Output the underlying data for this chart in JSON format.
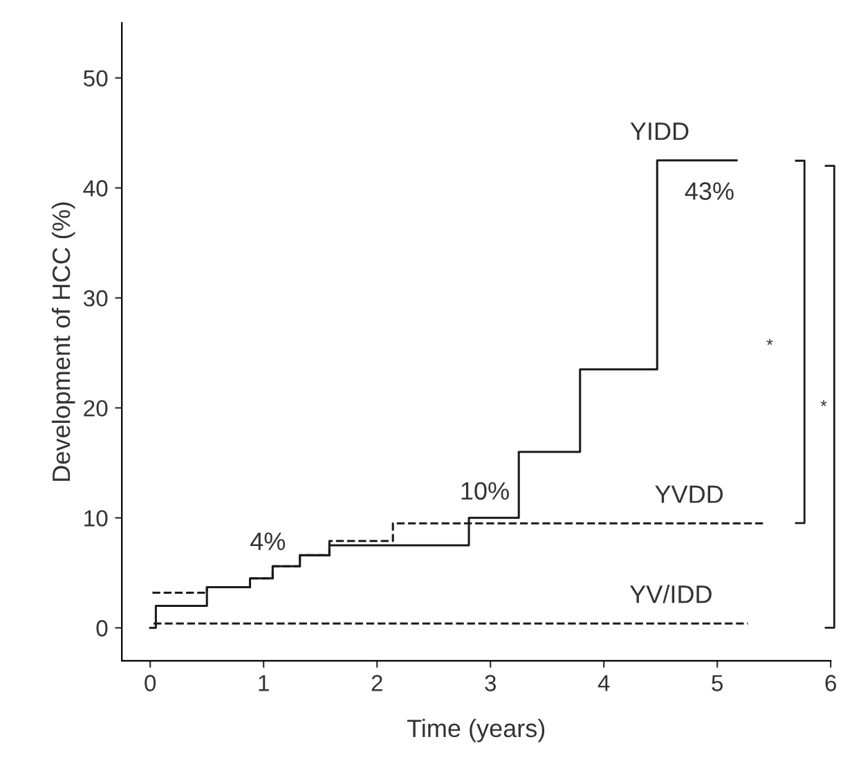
{
  "chart_data": {
    "type": "step",
    "xlabel": "Time (years)",
    "ylabel": "Development of HCC (%)",
    "xlim": [
      -0.25,
      6.0
    ],
    "ylim": [
      -3,
      55
    ],
    "xticks": [
      0,
      1,
      2,
      3,
      4,
      5,
      6
    ],
    "yticks": [
      0,
      10,
      20,
      30,
      40,
      50
    ],
    "grid": false,
    "legend": false,
    "marker": "none",
    "series": [
      {
        "name": "YIDD",
        "color": "#1a1a1a",
        "line_style": "solid",
        "x": [
          0.0,
          0.05,
          0.5,
          0.88,
          1.08,
          1.32,
          1.58,
          2.81,
          3.25,
          3.79,
          4.47,
          5.17
        ],
        "values": [
          0,
          2.0,
          3.7,
          4.5,
          5.6,
          6.6,
          7.5,
          10.0,
          16.0,
          23.5,
          42.5,
          42.5
        ]
      },
      {
        "name": "YVDD",
        "color": "#1a1a1a",
        "line_style": "dashed",
        "x": [
          0.02,
          0.5,
          0.88,
          1.08,
          1.32,
          1.58,
          2.14,
          5.43
        ],
        "values": [
          3.2,
          3.7,
          4.5,
          5.6,
          6.6,
          7.9,
          9.5,
          9.5
        ]
      },
      {
        "name": "YV/IDD",
        "color": "#1a1a1a",
        "line_style": "dashed",
        "x": [
          0.03,
          5.27
        ],
        "values": [
          0.4,
          0.4
        ]
      }
    ],
    "annotations": [
      "4%",
      "10%",
      "43%",
      "*",
      "*"
    ]
  }
}
